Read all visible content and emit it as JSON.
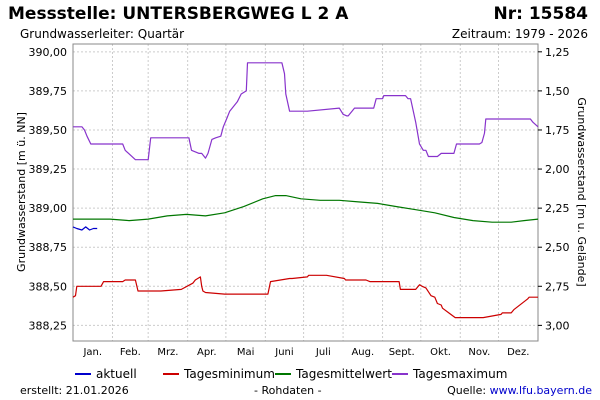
{
  "header": {
    "title": "Messstelle: UNTERSBERGWEG L 2 A",
    "nr": "Nr: 15584",
    "subtitle": "Grundwasserleiter: Quartär",
    "zeitraum": "Zeitraum: 1979 - 2026"
  },
  "footer": {
    "created_label": "erstellt:",
    "created_date": "21.01.2026",
    "raw_note": "- Rohdaten -",
    "source_label": "Quelle:",
    "source_link": "www.lfu.bayern.de"
  },
  "colors": {
    "aktuell": "#0000cc",
    "minimum": "#cc0000",
    "mittel": "#007700",
    "maximum": "#8833cc",
    "grid": "#cccccc"
  },
  "chart_data": {
    "type": "line",
    "ylabel_left": "Grundwasserstand [m ü. NN]",
    "ylabel_right": "Grundwasserstand [m u. Gelände]",
    "ylim": [
      388.15,
      390.05
    ],
    "yticks": [
      "388,25",
      "388,50",
      "388,75",
      "389,00",
      "389,25",
      "389,50",
      "389,75",
      "390,00"
    ],
    "yticks_values": [
      388.25,
      388.5,
      388.75,
      389.0,
      389.25,
      389.5,
      389.75,
      390.0
    ],
    "yticks_right": [
      "1,25",
      "1,50",
      "1,75",
      "2,00",
      "2,25",
      "2,50",
      "2,75",
      "3,00"
    ],
    "yticks_right_values": [
      390.0,
      389.75,
      389.5,
      389.25,
      389.0,
      388.75,
      388.5,
      388.25
    ],
    "xlim": [
      1,
      366
    ],
    "months": [
      "Jan.",
      "Feb.",
      "Mrz.",
      "Apr.",
      "Mai",
      "Juni",
      "Juli",
      "Aug.",
      "Sept.",
      "Okt.",
      "Nov.",
      "Dez."
    ],
    "grid": true,
    "legend_position": "bottom",
    "series": [
      {
        "name": "aktuell",
        "x": [
          1,
          4,
          8,
          11,
          14,
          17,
          20
        ],
        "y": [
          388.88,
          388.87,
          388.86,
          388.88,
          388.86,
          388.87,
          388.87
        ]
      },
      {
        "name": "Tagesminimum",
        "x": [
          1,
          3,
          4,
          23,
          25,
          40,
          42,
          50,
          52,
          70,
          86,
          95,
          97,
          101,
          102,
          103,
          105,
          120,
          140,
          154,
          156,
          171,
          173,
          185,
          186,
          200,
          214,
          215,
          231,
          234,
          257,
          258,
          262,
          264,
          270,
          273,
          275,
          278,
          282,
          285,
          287,
          290,
          291,
          296,
          301,
          320,
          321,
          323,
          337,
          338,
          345,
          347,
          358,
          359,
          366
        ],
        "y": [
          388.43,
          388.44,
          388.5,
          388.5,
          388.53,
          388.53,
          388.54,
          388.54,
          388.47,
          388.47,
          388.48,
          388.52,
          388.54,
          388.56,
          388.5,
          388.47,
          388.46,
          388.45,
          388.45,
          388.45,
          388.53,
          388.55,
          388.55,
          388.56,
          388.57,
          388.57,
          388.55,
          388.54,
          388.54,
          388.53,
          388.53,
          388.48,
          388.48,
          388.48,
          388.48,
          388.51,
          388.5,
          388.49,
          388.44,
          388.43,
          388.39,
          388.38,
          388.36,
          388.33,
          388.3,
          388.3,
          388.3,
          388.3,
          388.32,
          388.33,
          388.33,
          388.35,
          388.42,
          388.43,
          388.43
        ]
      },
      {
        "name": "Tagesmittelwert",
        "x": [
          1,
          15,
          30,
          45,
          60,
          75,
          90,
          105,
          120,
          135,
          150,
          160,
          168,
          180,
          195,
          210,
          225,
          240,
          255,
          270,
          285,
          300,
          315,
          330,
          345,
          355,
          366
        ],
        "y": [
          388.93,
          388.93,
          388.93,
          388.92,
          388.93,
          388.95,
          388.96,
          388.95,
          388.97,
          389.01,
          389.06,
          389.08,
          389.08,
          389.06,
          389.05,
          389.05,
          389.04,
          389.03,
          389.01,
          388.99,
          388.97,
          388.94,
          388.92,
          388.91,
          388.91,
          388.92,
          388.93
        ]
      },
      {
        "name": "Tagesmaximum",
        "x": [
          1,
          8,
          10,
          12,
          15,
          40,
          42,
          50,
          52,
          60,
          62,
          92,
          94,
          100,
          102,
          105,
          107,
          110,
          113,
          117,
          119,
          122,
          124,
          130,
          133,
          137,
          138,
          141,
          143,
          146,
          147,
          165,
          167,
          168,
          171,
          183,
          185,
          210,
          213,
          216,
          217,
          220,
          222,
          237,
          239,
          244,
          245,
          262,
          264,
          266,
          270,
          273,
          276,
          278,
          280,
          287,
          290,
          300,
          302,
          304,
          306,
          320,
          322,
          324,
          325,
          360,
          362,
          366
        ],
        "y": [
          389.52,
          389.52,
          389.5,
          389.46,
          389.41,
          389.41,
          389.37,
          389.31,
          389.31,
          389.31,
          389.45,
          389.45,
          389.37,
          389.35,
          389.35,
          389.32,
          389.35,
          389.44,
          389.45,
          389.46,
          389.52,
          389.58,
          389.62,
          389.68,
          389.73,
          389.75,
          389.93,
          389.93,
          389.93,
          389.93,
          389.93,
          389.93,
          389.86,
          389.73,
          389.62,
          389.62,
          389.62,
          389.64,
          389.6,
          389.59,
          389.59,
          389.62,
          389.64,
          389.64,
          389.7,
          389.7,
          389.72,
          389.72,
          389.7,
          389.7,
          389.55,
          389.41,
          389.37,
          389.37,
          389.33,
          389.33,
          389.35,
          389.35,
          389.41,
          389.41,
          389.41,
          389.41,
          389.42,
          389.48,
          389.57,
          389.57,
          389.55,
          389.52
        ]
      }
    ]
  }
}
